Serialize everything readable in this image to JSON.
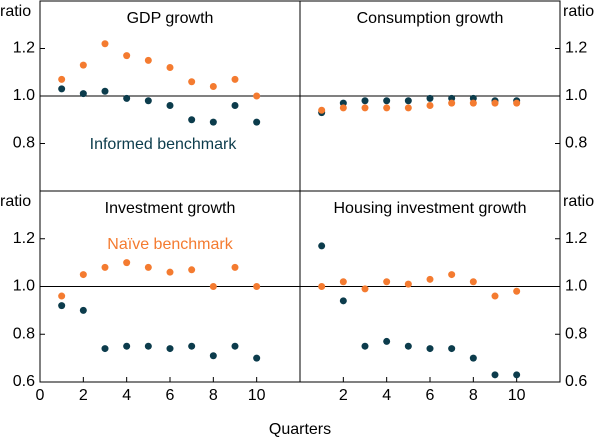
{
  "chart_data": [
    {
      "type": "scatter",
      "title": "GDP growth",
      "ylabel": "ratio",
      "yaxis_side": "left",
      "x": [
        1,
        2,
        3,
        4,
        5,
        6,
        7,
        8,
        9,
        10
      ],
      "xlim": [
        0,
        12
      ],
      "ylim": [
        0.6,
        1.4
      ],
      "yticks": [
        0.8,
        {
          "value": 1,
          "label": "1.0"
        },
        1.2
      ],
      "hline": 1,
      "series": [
        {
          "name": "Informed benchmark",
          "color": "#0c3c4c",
          "values": [
            1.03,
            1.01,
            1.02,
            0.99,
            0.98,
            0.96,
            0.9,
            0.89,
            0.96,
            0.89
          ]
        },
        {
          "color": "#f47b30",
          "values": [
            1.07,
            1.13,
            1.22,
            1.17,
            1.15,
            1.12,
            1.06,
            1.04,
            1.07,
            1.0
          ]
        }
      ]
    },
    {
      "type": "scatter",
      "title": "Consumption growth",
      "ylabel": "ratio",
      "yaxis_side": "right",
      "x": [
        1,
        2,
        3,
        4,
        5,
        6,
        7,
        8,
        9,
        10
      ],
      "xlim": [
        0,
        12
      ],
      "ylim": [
        0.6,
        1.4
      ],
      "yticks": [
        0.8,
        {
          "value": 1,
          "label": "1.0"
        },
        1.2
      ],
      "hline": 1,
      "series": [
        {
          "color": "#0c3c4c",
          "values": [
            0.93,
            0.97,
            0.98,
            0.98,
            0.98,
            0.99,
            0.99,
            0.99,
            0.98,
            0.98
          ]
        },
        {
          "color": "#f47b30",
          "values": [
            0.94,
            0.95,
            0.95,
            0.95,
            0.95,
            0.96,
            0.97,
            0.97,
            0.97,
            0.97
          ]
        }
      ]
    },
    {
      "type": "scatter",
      "title": "Investment growth",
      "ylabel": "ratio",
      "yaxis_side": "left",
      "x": [
        1,
        2,
        3,
        4,
        5,
        6,
        7,
        8,
        9,
        10
      ],
      "xlim": [
        0,
        12
      ],
      "ylim": [
        0.6,
        1.4
      ],
      "xticks": [
        0,
        2,
        4,
        6,
        8,
        10
      ],
      "yticks": [
        0.6,
        0.8,
        {
          "value": 1,
          "label": "1.0"
        },
        1.2
      ],
      "hline": 1,
      "series": [
        {
          "color": "#0c3c4c",
          "values": [
            0.92,
            0.9,
            0.74,
            0.75,
            0.75,
            0.74,
            0.75,
            0.71,
            0.75,
            0.7
          ]
        },
        {
          "name": "Naïve benchmark",
          "color": "#f47b30",
          "values": [
            0.96,
            1.05,
            1.08,
            1.1,
            1.08,
            1.06,
            1.07,
            1.0,
            1.08,
            1.0
          ]
        }
      ]
    },
    {
      "type": "scatter",
      "title": "Housing investment growth",
      "ylabel": "ratio",
      "yaxis_side": "right",
      "x": [
        1,
        2,
        3,
        4,
        5,
        6,
        7,
        8,
        9,
        10
      ],
      "xlim": [
        0,
        12
      ],
      "ylim": [
        0.6,
        1.4
      ],
      "xticks": [
        2,
        4,
        6,
        8,
        10
      ],
      "yticks": [
        0.6,
        0.8,
        {
          "value": 1,
          "label": "1.0"
        },
        1.2
      ],
      "hline": 1,
      "series": [
        {
          "color": "#0c3c4c",
          "values": [
            1.17,
            0.94,
            0.75,
            0.77,
            0.75,
            0.74,
            0.74,
            0.7,
            0.63,
            0.63
          ]
        },
        {
          "color": "#f47b30",
          "values": [
            1.0,
            1.02,
            0.99,
            1.02,
            1.01,
            1.03,
            1.05,
            1.02,
            0.96,
            0.98
          ]
        }
      ]
    }
  ],
  "xlabel": "Quarters"
}
